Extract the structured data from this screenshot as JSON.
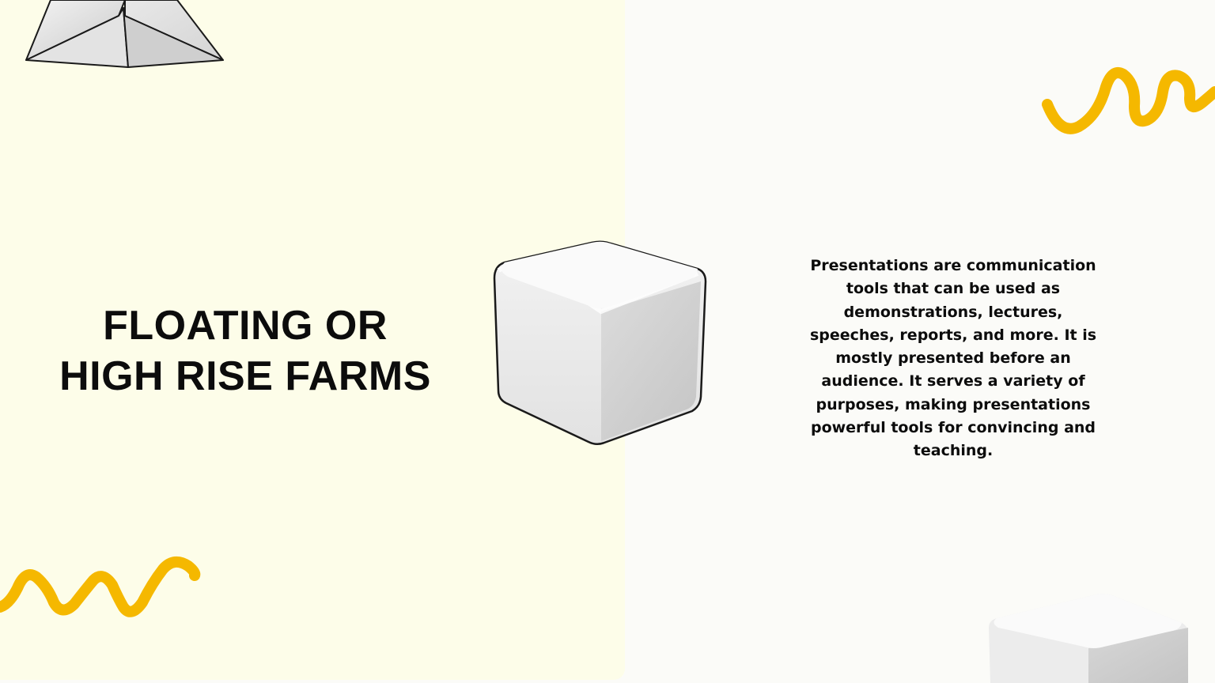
{
  "slide": {
    "title_line1": "FLOATING OR",
    "title_line2": "HIGH RISE FARMS",
    "body": "Presentations are communication tools that can be used as demonstrations, lectures, speeches, reports, and more. It is mostly presented before an audience. It serves a variety of purposes, making presentations powerful tools for convincing and teaching."
  },
  "colors": {
    "left_panel": "#fdfde9",
    "background": "#fbfbf8",
    "accent_squiggle": "#f5b800",
    "text": "#0c0c0c"
  },
  "decorations": [
    "pyramid-shape",
    "white-cube-3d",
    "yellow-squiggle",
    "white-cube-3d",
    "yellow-squiggle"
  ]
}
